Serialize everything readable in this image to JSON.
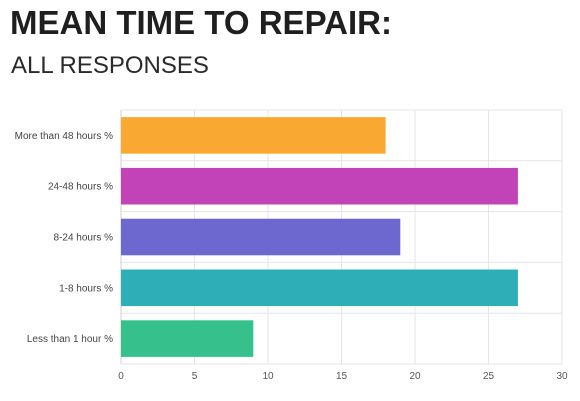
{
  "header": {
    "title": "MEAN TIME TO REPAIR:",
    "subtitle": "ALL RESPONSES"
  },
  "chart_data": {
    "type": "bar",
    "orientation": "horizontal",
    "title": "MEAN TIME TO REPAIR:",
    "subtitle": "ALL RESPONSES",
    "xlabel": "",
    "ylabel": "",
    "categories": [
      "More than 48 hours %",
      "24-48 hours %",
      "8-24 hours %",
      "1-8 hours %",
      "Less than 1 hour %"
    ],
    "values": [
      18,
      27,
      19,
      27,
      9
    ],
    "colors": [
      "#f9a832",
      "#c243b7",
      "#6c68cf",
      "#2eafb8",
      "#35c08c"
    ],
    "xlim": [
      0,
      30
    ],
    "xticks": [
      0,
      5,
      10,
      15,
      20,
      25,
      30
    ],
    "grid": true,
    "legend": "none"
  }
}
